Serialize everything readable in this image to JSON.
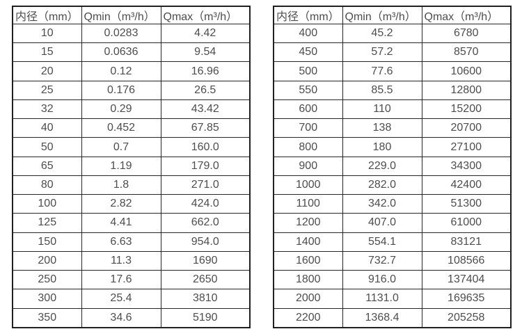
{
  "page": {
    "background_color": "#ffffff",
    "text_color": "#4d4d4d",
    "border_color": "#1f1f1f"
  },
  "chart_data": [
    {
      "type": "table",
      "name": "flow-rate-spec-table-small-diameters",
      "headers": [
        "内径（mm）",
        "Qmin（m³/h）",
        "Qmax（m³/h）"
      ],
      "rows": [
        [
          "10",
          "0.0283",
          "4.42"
        ],
        [
          "15",
          "0.0636",
          "9.54"
        ],
        [
          "20",
          "0.12",
          "16.96"
        ],
        [
          "25",
          "0.176",
          "26.5"
        ],
        [
          "32",
          "0.29",
          "43.42"
        ],
        [
          "40",
          "0.452",
          "67.85"
        ],
        [
          "50",
          "0.7",
          "160.0"
        ],
        [
          "65",
          "1.19",
          "179.0"
        ],
        [
          "80",
          "1.8",
          "271.0"
        ],
        [
          "100",
          "2.82",
          "424.0"
        ],
        [
          "125",
          "4.41",
          "662.0"
        ],
        [
          "150",
          "6.63",
          "954.0"
        ],
        [
          "200",
          "11.3",
          "1690"
        ],
        [
          "250",
          "17.6",
          "2650"
        ],
        [
          "300",
          "25.4",
          "3810"
        ],
        [
          "350",
          "34.6",
          "5190"
        ]
      ]
    },
    {
      "type": "table",
      "name": "flow-rate-spec-table-large-diameters",
      "headers": [
        "内径（mm）",
        "Qmin（m³/h）",
        "Qmax（m³/h）"
      ],
      "rows": [
        [
          "400",
          "45.2",
          "6780"
        ],
        [
          "450",
          "57.2",
          "8570"
        ],
        [
          "500",
          "77.6",
          "10600"
        ],
        [
          "550",
          "85.5",
          "12800"
        ],
        [
          "600",
          "110",
          "15200"
        ],
        [
          "700",
          "138",
          "20700"
        ],
        [
          "800",
          "180",
          "27100"
        ],
        [
          "900",
          "229.0",
          "34300"
        ],
        [
          "1000",
          "282.0",
          "42400"
        ],
        [
          "1100",
          "342.0",
          "51300"
        ],
        [
          "1200",
          "407.0",
          "61000"
        ],
        [
          "1400",
          "554.1",
          "83121"
        ],
        [
          "1600",
          "732.7",
          "108566"
        ],
        [
          "1800",
          "916.0",
          "137404"
        ],
        [
          "2000",
          "1131.0",
          "169635"
        ],
        [
          "2200",
          "1368.4",
          "205258"
        ]
      ]
    }
  ]
}
